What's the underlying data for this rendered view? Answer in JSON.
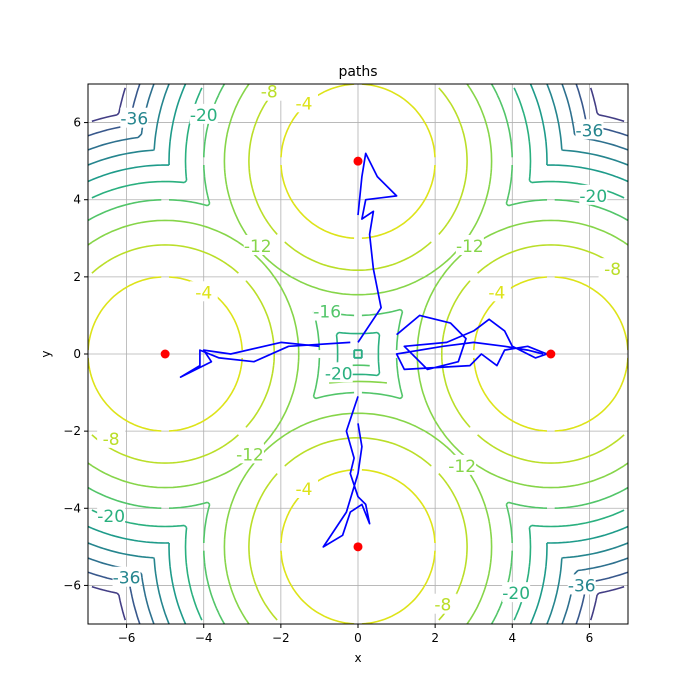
{
  "chart_data": {
    "type": "line",
    "title": "paths",
    "xlabel": "x",
    "ylabel": "y",
    "xlim": [
      -7,
      7
    ],
    "ylim": [
      -7,
      7
    ],
    "grid": true,
    "x_ticks": [
      -6,
      -4,
      -2,
      0,
      2,
      4,
      6
    ],
    "y_ticks": [
      -6,
      -4,
      -2,
      0,
      2,
      4,
      6
    ],
    "x_tick_labels": [
      "−6",
      "−4",
      "−2",
      "0",
      "2",
      "4",
      "6"
    ],
    "y_tick_labels": [
      "−6",
      "−4",
      "−2",
      "0",
      "2",
      "4",
      "6"
    ],
    "contour": {
      "centers": [
        [
          -5,
          0
        ],
        [
          5,
          0
        ],
        [
          0,
          5
        ],
        [
          0,
          -5
        ]
      ],
      "levels": [
        -4,
        -8,
        -12,
        -16,
        -20,
        -24,
        -28,
        -32,
        -36,
        -40
      ],
      "level_colors": [
        "#dde318",
        "#bade28",
        "#86d549",
        "#52c569",
        "#2ab07f",
        "#1e9b8a",
        "#25858e",
        "#2d708e",
        "#38588c",
        "#433e85"
      ],
      "labels": [
        {
          "text": "-4",
          "x": -4.0,
          "y": 1.6,
          "color": "#dde318"
        },
        {
          "text": "-4",
          "x": 3.6,
          "y": 1.6,
          "color": "#dde318"
        },
        {
          "text": "-4",
          "x": -1.4,
          "y": 6.5,
          "color": "#dde318"
        },
        {
          "text": "-4",
          "x": -1.4,
          "y": -3.5,
          "color": "#dde318"
        },
        {
          "text": "-8",
          "x": -2.3,
          "y": 6.8,
          "color": "#bade28"
        },
        {
          "text": "-8",
          "x": -6.4,
          "y": -2.2,
          "color": "#bade28"
        },
        {
          "text": "-8",
          "x": 6.6,
          "y": 2.2,
          "color": "#bade28"
        },
        {
          "text": "-8",
          "x": 2.2,
          "y": -6.5,
          "color": "#bade28"
        },
        {
          "text": "-12",
          "x": -2.6,
          "y": 2.8,
          "color": "#86d549"
        },
        {
          "text": "-12",
          "x": 2.9,
          "y": 2.8,
          "color": "#86d549"
        },
        {
          "text": "-12",
          "x": -2.8,
          "y": -2.6,
          "color": "#86d549"
        },
        {
          "text": "-12",
          "x": 2.7,
          "y": -2.9,
          "color": "#86d549"
        },
        {
          "text": "-16",
          "x": -0.8,
          "y": 1.1,
          "color": "#52c569"
        },
        {
          "text": "-20",
          "x": -4.0,
          "y": 6.2,
          "color": "#2ab07f"
        },
        {
          "text": "-20",
          "x": 6.1,
          "y": 4.1,
          "color": "#2ab07f"
        },
        {
          "text": "-20",
          "x": -6.4,
          "y": -4.2,
          "color": "#2ab07f"
        },
        {
          "text": "-20",
          "x": 4.1,
          "y": -6.2,
          "color": "#2ab07f"
        },
        {
          "text": "-20",
          "x": -0.5,
          "y": -0.5,
          "color": "#2ab07f"
        },
        {
          "text": "-36",
          "x": -5.8,
          "y": 6.1,
          "color": "#25858e"
        },
        {
          "text": "-36",
          "x": 6.0,
          "y": 5.8,
          "color": "#25858e"
        },
        {
          "text": "-36",
          "x": -6.0,
          "y": -5.8,
          "color": "#25858e"
        },
        {
          "text": "-36",
          "x": 5.8,
          "y": -6.0,
          "color": "#25858e"
        }
      ]
    },
    "minima_points": [
      {
        "x": 0,
        "y": 5
      },
      {
        "x": -5,
        "y": 0
      },
      {
        "x": 5,
        "y": 0
      },
      {
        "x": 0,
        "y": -5
      }
    ],
    "start_point": {
      "x": 0,
      "y": 0
    },
    "series": [
      {
        "color": "#0000ff",
        "points": [
          [
            0.0,
            0.3
          ],
          [
            0.6,
            1.2
          ],
          [
            0.4,
            2.2
          ],
          [
            0.3,
            3.1
          ],
          [
            0.4,
            3.7
          ],
          [
            0.1,
            3.5
          ],
          [
            0.2,
            4.0
          ],
          [
            1.0,
            4.1
          ],
          [
            0.5,
            4.6
          ],
          [
            0.2,
            5.2
          ],
          [
            0.1,
            4.6
          ],
          [
            0.0,
            3.6
          ]
        ]
      },
      {
        "color": "#0000ff",
        "points": [
          [
            -0.2,
            0.3
          ],
          [
            -1.8,
            0.2
          ],
          [
            -2.7,
            -0.2
          ],
          [
            -3.6,
            -0.1
          ],
          [
            -4.1,
            0.1
          ],
          [
            -4.1,
            -0.3
          ],
          [
            -4.6,
            -0.6
          ],
          [
            -3.8,
            -0.2
          ],
          [
            -4.0,
            0.1
          ],
          [
            -3.3,
            0.0
          ],
          [
            -2.0,
            0.3
          ],
          [
            -1.0,
            0.2
          ]
        ]
      },
      {
        "color": "#0000ff",
        "points": [
          [
            1.0,
            0.5
          ],
          [
            1.6,
            1.0
          ],
          [
            2.4,
            0.8
          ],
          [
            2.8,
            0.4
          ],
          [
            2.6,
            -0.2
          ],
          [
            1.8,
            -0.4
          ],
          [
            1.2,
            0.2
          ],
          [
            2.3,
            0.3
          ],
          [
            3.0,
            0.6
          ],
          [
            3.4,
            0.9
          ],
          [
            3.8,
            0.6
          ],
          [
            4.0,
            0.2
          ],
          [
            4.6,
            -0.1
          ],
          [
            4.9,
            0.0
          ],
          [
            4.4,
            0.2
          ],
          [
            3.8,
            0.1
          ],
          [
            3.6,
            -0.3
          ],
          [
            3.2,
            0.0
          ],
          [
            2.9,
            -0.3
          ],
          [
            1.2,
            -0.4
          ],
          [
            1.0,
            0.0
          ],
          [
            2.2,
            0.2
          ],
          [
            3.0,
            0.3
          ],
          [
            3.8,
            0.2
          ],
          [
            4.4,
            0.1
          ],
          [
            4.8,
            0.0
          ]
        ]
      },
      {
        "color": "#0000ff",
        "points": [
          [
            0.0,
            -1.1
          ],
          [
            -0.3,
            -2.0
          ],
          [
            -0.1,
            -2.7
          ],
          [
            -0.2,
            -3.1
          ],
          [
            0.0,
            -3.7
          ],
          [
            0.2,
            -3.9
          ],
          [
            0.3,
            -4.4
          ],
          [
            0.1,
            -3.9
          ],
          [
            -0.2,
            -4.1
          ],
          [
            -0.4,
            -4.7
          ],
          [
            -0.9,
            -5.0
          ],
          [
            -0.3,
            -4.1
          ],
          [
            0.0,
            -3.1
          ],
          [
            0.1,
            -2.4
          ],
          [
            0.0,
            -1.8
          ]
        ]
      }
    ]
  }
}
